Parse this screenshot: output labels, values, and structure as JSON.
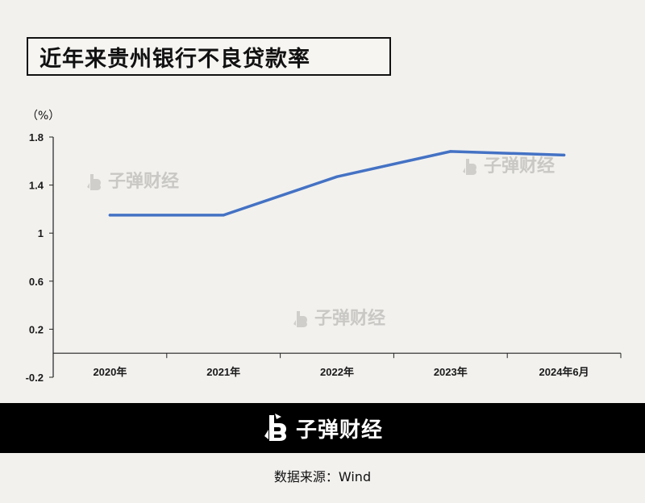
{
  "title": "近年来贵州银行不良贷款率",
  "unit": "（%）",
  "watermark": "子弹财经",
  "footer": {
    "brand": "子弹财经",
    "logo_icon": "bullet-logo-icon"
  },
  "source": "数据来源：Wind",
  "colors": {
    "line": "#4472c4",
    "background": "#f2f1ee",
    "footer": "#000000"
  },
  "chart_data": {
    "type": "line",
    "title": "近年来贵州银行不良贷款率",
    "ylabel": "（%）",
    "xlabel": "",
    "categories": [
      "2020年",
      "2021年",
      "2022年",
      "2023年",
      "2024年6月"
    ],
    "series": [
      {
        "values": [
          1.15,
          1.15,
          1.47,
          1.68,
          1.65
        ]
      }
    ],
    "ylim": [
      -0.2,
      1.8
    ],
    "yticks": [
      -0.2,
      0.2,
      0.6,
      1,
      1.4,
      1.8
    ],
    "ytick_labels": [
      "-0.2",
      "0.2",
      "0.6",
      "1",
      "1.4",
      "1.8"
    ],
    "grid": false,
    "legend": "none"
  }
}
